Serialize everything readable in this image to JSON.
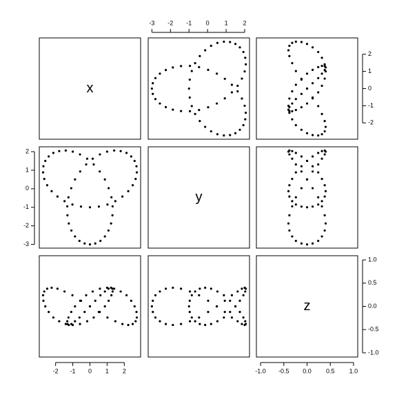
{
  "chart_data": {
    "type": "scatter_matrix",
    "color": "#000000",
    "variables": [
      {
        "name": "x",
        "lim": [
          -2.95,
          2.95
        ],
        "ticks": [
          -2,
          -1,
          0,
          1,
          2
        ],
        "values": [
          0,
          0.52,
          1.02,
          1.48,
          1.89,
          2.23,
          2.49,
          2.66,
          2.73,
          2.71,
          2.6,
          2.4,
          2.13,
          1.79,
          1.41,
          1,
          0.58,
          0.16,
          -0.22,
          -0.57,
          -0.87,
          -1.09,
          -1.25,
          -1.32,
          -1.31,
          -1.23,
          -1.08,
          -0.87,
          -0.61,
          -0.31,
          0,
          0.31,
          0.61,
          0.87,
          1.08,
          1.23,
          1.31,
          1.32,
          1.25,
          1.09,
          0.87,
          0.57,
          0.22,
          -0.16,
          -0.58,
          -1,
          -1.41,
          -1.79,
          -2.13,
          -2.4,
          -2.6,
          -2.71,
          -2.73,
          -2.66,
          -2.49,
          -2.23,
          -1.89,
          -1.48,
          -1.02,
          -0.52
        ]
      },
      {
        "name": "y",
        "lim": [
          -3.2,
          2.26
        ],
        "ticks": [
          -3,
          -2,
          -1,
          0,
          1,
          2
        ],
        "values": [
          -1,
          -0.96,
          -0.85,
          -0.67,
          -0.42,
          -0.13,
          0.19,
          0.53,
          0.88,
          1.21,
          1.5,
          1.74,
          1.93,
          2.03,
          2.06,
          2,
          1.85,
          1.62,
          1.31,
          0.93,
          0.5,
          0.03,
          -0.46,
          -0.95,
          -1.43,
          -1.87,
          -2.25,
          -2.57,
          -2.81,
          -2.95,
          -3,
          -2.95,
          -2.81,
          -2.57,
          -2.25,
          -1.87,
          -1.43,
          -0.95,
          -0.46,
          0.03,
          0.5,
          0.93,
          1.31,
          1.62,
          1.85,
          2,
          2.06,
          2.03,
          1.93,
          1.74,
          1.5,
          1.21,
          0.88,
          0.53,
          0.19,
          -0.13,
          -0.42,
          -0.67,
          -0.85,
          -0.96
        ]
      },
      {
        "name": "z",
        "lim": [
          -1.09,
          1.09
        ],
        "ticks": [
          {
            "value": -1,
            "label": "-1.0"
          },
          -0.5,
          {
            "value": 0,
            "label": "0.0"
          },
          0.5,
          {
            "value": 1,
            "label": "1.0"
          }
        ],
        "values": [
          0,
          -0.12,
          -0.24,
          -0.32,
          -0.38,
          -0.4,
          -0.38,
          -0.32,
          -0.24,
          -0.12,
          0,
          0.12,
          0.24,
          0.32,
          0.38,
          0.4,
          0.38,
          0.32,
          0.24,
          0.12,
          0,
          -0.12,
          -0.24,
          -0.32,
          -0.38,
          -0.4,
          -0.38,
          -0.32,
          -0.24,
          -0.12,
          0,
          0.12,
          0.24,
          0.32,
          0.38,
          0.4,
          0.38,
          0.32,
          0.24,
          0.12,
          0,
          -0.12,
          -0.24,
          -0.32,
          -0.38,
          -0.4,
          -0.38,
          -0.32,
          -0.24,
          -0.12,
          0,
          0.12,
          0.24,
          0.32,
          0.38,
          0.4,
          0.38,
          0.32,
          0.24,
          0.12
        ]
      }
    ]
  }
}
